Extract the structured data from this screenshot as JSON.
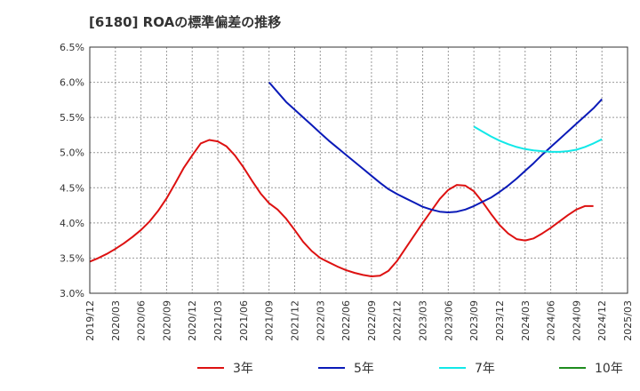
{
  "chart_data": {
    "type": "line",
    "title": "[6180]  ROAの標準偏差の推移",
    "xlabel": "",
    "ylabel": "",
    "x_ticks": [
      "2019/12",
      "2020/03",
      "2020/06",
      "2020/09",
      "2020/12",
      "2021/03",
      "2021/06",
      "2021/09",
      "2021/12",
      "2022/03",
      "2022/06",
      "2022/09",
      "2022/12",
      "2023/03",
      "2023/06",
      "2023/09",
      "2023/12",
      "2024/03",
      "2024/06",
      "2024/09",
      "2024/12",
      "2025/03"
    ],
    "y_ticks": [
      "3.0%",
      "3.5%",
      "4.0%",
      "4.5%",
      "5.0%",
      "5.5%",
      "6.0%",
      "6.5%"
    ],
    "ylim": [
      3.0,
      6.5
    ],
    "grid": true,
    "legend_position": "bottom",
    "series": [
      {
        "name": "3年",
        "color": "#dd1111",
        "points": [
          [
            "2019/12",
            3.45
          ],
          [
            "2020/01",
            3.5
          ],
          [
            "2020/02",
            3.56
          ],
          [
            "2020/03",
            3.63
          ],
          [
            "2020/04",
            3.71
          ],
          [
            "2020/05",
            3.8
          ],
          [
            "2020/06",
            3.9
          ],
          [
            "2020/07",
            4.02
          ],
          [
            "2020/08",
            4.17
          ],
          [
            "2020/09",
            4.35
          ],
          [
            "2020/10",
            4.56
          ],
          [
            "2020/11",
            4.78
          ],
          [
            "2020/12",
            4.96
          ],
          [
            "2021/01",
            5.13
          ],
          [
            "2021/02",
            5.18
          ],
          [
            "2021/03",
            5.16
          ],
          [
            "2021/04",
            5.09
          ],
          [
            "2021/05",
            4.96
          ],
          [
            "2021/06",
            4.79
          ],
          [
            "2021/07",
            4.6
          ],
          [
            "2021/08",
            4.42
          ],
          [
            "2021/09",
            4.28
          ],
          [
            "2021/10",
            4.19
          ],
          [
            "2021/11",
            4.06
          ],
          [
            "2021/12",
            3.9
          ],
          [
            "2022/01",
            3.73
          ],
          [
            "2022/02",
            3.6
          ],
          [
            "2022/03",
            3.5
          ],
          [
            "2022/04",
            3.44
          ],
          [
            "2022/05",
            3.38
          ],
          [
            "2022/06",
            3.33
          ],
          [
            "2022/07",
            3.29
          ],
          [
            "2022/08",
            3.26
          ],
          [
            "2022/09",
            3.24
          ],
          [
            "2022/10",
            3.25
          ],
          [
            "2022/11",
            3.32
          ],
          [
            "2022/12",
            3.46
          ],
          [
            "2023/01",
            3.64
          ],
          [
            "2023/02",
            3.82
          ],
          [
            "2023/03",
            4.0
          ],
          [
            "2023/04",
            4.17
          ],
          [
            "2023/05",
            4.34
          ],
          [
            "2023/06",
            4.47
          ],
          [
            "2023/07",
            4.54
          ],
          [
            "2023/08",
            4.53
          ],
          [
            "2023/09",
            4.45
          ],
          [
            "2023/10",
            4.3
          ],
          [
            "2023/11",
            4.13
          ],
          [
            "2023/12",
            3.97
          ],
          [
            "2024/01",
            3.85
          ],
          [
            "2024/02",
            3.77
          ],
          [
            "2024/03",
            3.75
          ],
          [
            "2024/04",
            3.78
          ],
          [
            "2024/05",
            3.85
          ],
          [
            "2024/06",
            3.93
          ],
          [
            "2024/07",
            4.02
          ],
          [
            "2024/08",
            4.11
          ],
          [
            "2024/09",
            4.19
          ],
          [
            "2024/10",
            4.24
          ],
          [
            "2024/11",
            4.24
          ]
        ]
      },
      {
        "name": "5年",
        "color": "#0a1ab8",
        "points": [
          [
            "2021/09",
            6.0
          ],
          [
            "2021/10",
            5.86
          ],
          [
            "2021/11",
            5.72
          ],
          [
            "2021/12",
            5.61
          ],
          [
            "2022/01",
            5.5
          ],
          [
            "2022/02",
            5.39
          ],
          [
            "2022/03",
            5.28
          ],
          [
            "2022/04",
            5.17
          ],
          [
            "2022/05",
            5.07
          ],
          [
            "2022/06",
            4.97
          ],
          [
            "2022/07",
            4.87
          ],
          [
            "2022/08",
            4.77
          ],
          [
            "2022/09",
            4.67
          ],
          [
            "2022/10",
            4.57
          ],
          [
            "2022/11",
            4.48
          ],
          [
            "2022/12",
            4.41
          ],
          [
            "2023/01",
            4.35
          ],
          [
            "2023/02",
            4.29
          ],
          [
            "2023/03",
            4.23
          ],
          [
            "2023/04",
            4.19
          ],
          [
            "2023/05",
            4.16
          ],
          [
            "2023/06",
            4.15
          ],
          [
            "2023/07",
            4.16
          ],
          [
            "2023/08",
            4.19
          ],
          [
            "2023/09",
            4.24
          ],
          [
            "2023/10",
            4.3
          ],
          [
            "2023/11",
            4.36
          ],
          [
            "2023/12",
            4.44
          ],
          [
            "2024/01",
            4.53
          ],
          [
            "2024/02",
            4.63
          ],
          [
            "2024/03",
            4.74
          ],
          [
            "2024/04",
            4.85
          ],
          [
            "2024/05",
            4.97
          ],
          [
            "2024/06",
            5.08
          ],
          [
            "2024/07",
            5.19
          ],
          [
            "2024/08",
            5.3
          ],
          [
            "2024/09",
            5.41
          ],
          [
            "2024/10",
            5.52
          ],
          [
            "2024/11",
            5.63
          ],
          [
            "2024/12",
            5.76
          ]
        ]
      },
      {
        "name": "7年",
        "color": "#11e8e8",
        "points": [
          [
            "2023/09",
            5.37
          ],
          [
            "2023/10",
            5.3
          ],
          [
            "2023/11",
            5.23
          ],
          [
            "2023/12",
            5.17
          ],
          [
            "2024/01",
            5.12
          ],
          [
            "2024/02",
            5.08
          ],
          [
            "2024/03",
            5.05
          ],
          [
            "2024/04",
            5.03
          ],
          [
            "2024/05",
            5.02
          ],
          [
            "2024/06",
            5.01
          ],
          [
            "2024/07",
            5.01
          ],
          [
            "2024/08",
            5.02
          ],
          [
            "2024/09",
            5.04
          ],
          [
            "2024/10",
            5.08
          ],
          [
            "2024/11",
            5.13
          ],
          [
            "2024/12",
            5.19
          ]
        ]
      },
      {
        "name": "10年",
        "color": "#1e8c1e",
        "points": []
      }
    ]
  }
}
